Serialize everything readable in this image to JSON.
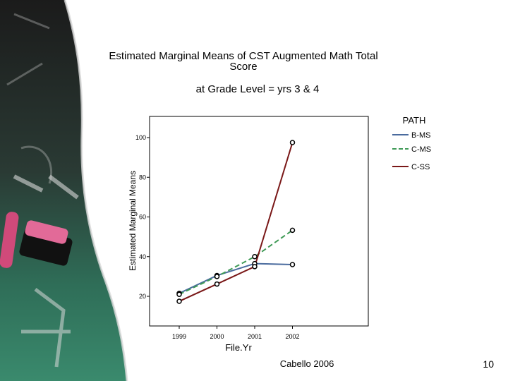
{
  "slide": {
    "title": "Estimated Marginal Means of CST Augmented Math Total Score",
    "subtitle": "at Grade Level = yrs 3 & 4",
    "footer": "Cabello 2006",
    "page_number": "10"
  },
  "chart_data": {
    "type": "line",
    "title": "Estimated Marginal Means of CST Augmented Math Total Score",
    "subtitle": "at Grade Level = yrs 3 & 4",
    "xlabel": "File.Yr",
    "ylabel": "Estimated Marginal Means",
    "categories": [
      "1999",
      "2000",
      "2001",
      "2002"
    ],
    "yticks": [
      "20",
      "40",
      "60",
      "80",
      "100"
    ],
    "ylim": [
      15,
      110
    ],
    "legend_title": "PATH",
    "legend_position": "top-right",
    "series": [
      {
        "name": "B-MS",
        "values": [
          21.5,
          30.5,
          36.5,
          36
        ],
        "color": "#4a6b9e",
        "dashed": false
      },
      {
        "name": "C-MS",
        "values": [
          21,
          30,
          40,
          53.3
        ],
        "color": "#3f9a56",
        "dashed": true
      },
      {
        "name": "C-SS",
        "values": [
          17.5,
          26.2,
          35,
          97.5
        ],
        "color": "#7a1818",
        "dashed": false
      }
    ]
  }
}
